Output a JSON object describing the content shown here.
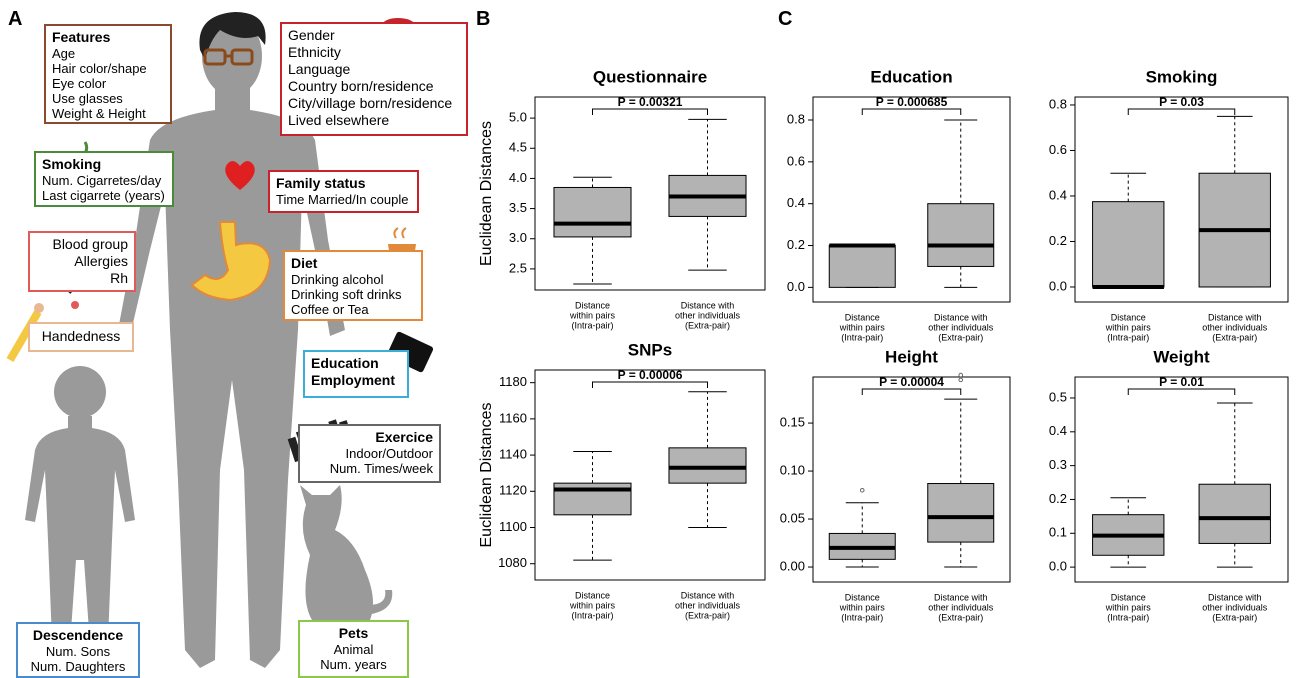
{
  "panel_labels": [
    "A",
    "B",
    "C"
  ],
  "panel_a": {
    "boxes": [
      {
        "title_lines": [
          "Features"
        ],
        "lines": [
          "Age",
          "Hair color/shape",
          "Eye color",
          "Use glasses",
          "Weight & Height"
        ],
        "color": "#8b4a2b"
      },
      {
        "lines": [
          "Gender",
          "Ethnicity",
          "Language",
          "Country born/residence",
          "City/village born/residence",
          "Lived elsewhere"
        ],
        "color": "#c8232c"
      },
      {
        "title_lines": [
          "Smoking"
        ],
        "lines": [
          "Num. Cigarretes/day",
          "Last cigarrete (years)"
        ],
        "color": "#4a8b3a"
      },
      {
        "title_lines": [
          "Family status"
        ],
        "lines": [
          "Time Married/In couple"
        ],
        "color": "#c8232c"
      },
      {
        "lines": [
          "Blood group",
          "Allergies",
          "Rh"
        ],
        "color": "#e05a5a"
      },
      {
        "title_lines": [
          "Diet"
        ],
        "lines": [
          "Drinking alcohol",
          "Drinking soft drinks",
          "Coffee or Tea"
        ],
        "color": "#e08a3a"
      },
      {
        "lines": [
          "Handedness"
        ],
        "color": "#e8b890"
      },
      {
        "title_lines": [
          "Education",
          "Employment"
        ],
        "color": "#3aaed8"
      },
      {
        "title_lines": [
          "Exercice"
        ],
        "lines": [
          "Indoor/Outdoor",
          "Num. Times/week"
        ],
        "color": "#666666"
      },
      {
        "title_lines": [
          "Descendence"
        ],
        "lines": [
          "Num. Sons",
          "Num. Daughters"
        ],
        "color": "#4a8bd0"
      },
      {
        "title_lines": [
          "Pets"
        ],
        "lines": [
          "Animal",
          "Num. years"
        ],
        "color": "#8bc84a"
      }
    ]
  },
  "chart_data": [
    {
      "type": "box",
      "title": "Questionnaire",
      "ylabel": "Euclidean Distances",
      "annotation": "P = 0.00321",
      "category_lines": [
        [
          "Distance",
          "within pairs",
          "(Intra-pair)"
        ],
        [
          "Distance with",
          "other individuals",
          "(Extra-pair)"
        ]
      ],
      "boxes": [
        {
          "min": 2.25,
          "q1": 3.03,
          "median": 3.25,
          "q3": 3.85,
          "max": 4.02
        },
        {
          "min": 2.48,
          "q1": 3.37,
          "median": 3.7,
          "q3": 4.05,
          "max": 4.98
        }
      ],
      "color": "#b3b3b3",
      "ylim": [
        2.15,
        5.35
      ],
      "yticks": [
        {
          "value": 2.5,
          "label": "2.5"
        },
        {
          "value": 3,
          "label": "3.0"
        },
        {
          "value": 3.5,
          "label": "3.5"
        },
        {
          "value": 4,
          "label": "4.0"
        },
        {
          "value": 4.5,
          "label": "4.5"
        },
        {
          "value": 5,
          "label": "5.0"
        }
      ]
    },
    {
      "type": "box",
      "title": "SNPs",
      "ylabel": "Euclidean Distances",
      "annotation": "P = 0.00006",
      "category_lines": [
        [
          "Distance",
          "within pairs",
          "(Intra-pair)"
        ],
        [
          "Distance with",
          "other individuals",
          "(Extra-pair)"
        ]
      ],
      "boxes": [
        {
          "min": 1082,
          "q1": 1107,
          "median": 1121,
          "q3": 1124.5,
          "max": 1142
        },
        {
          "min": 1100,
          "q1": 1124.5,
          "median": 1133,
          "q3": 1144,
          "max": 1175
        }
      ],
      "color": "#b3b3b3",
      "ylim": [
        1071,
        1187
      ],
      "yticks": [
        1080,
        1100,
        1120,
        1140,
        1160,
        1180
      ]
    },
    {
      "type": "box",
      "title": "Education",
      "annotation": "P = 0.000685",
      "category_lines": [
        [
          "Distance",
          "within pairs",
          "(Intra-pair)"
        ],
        [
          "Distance with",
          "other individuals",
          "(Extra-pair)"
        ]
      ],
      "boxes": [
        {
          "min": 0,
          "q1": 0,
          "median": 0.2,
          "q3": 0.2,
          "max": 0.2
        },
        {
          "min": 0,
          "q1": 0.1,
          "median": 0.2,
          "q3": 0.4,
          "max": 0.8
        }
      ],
      "color": "#b3b3b3",
      "ylim": [
        -0.07,
        0.91
      ],
      "yticks": [
        {
          "value": 0,
          "label": "0.0"
        },
        0.2,
        0.4,
        0.6,
        0.8
      ]
    },
    {
      "type": "box",
      "title": "Smoking",
      "annotation": "P = 0.03",
      "category_lines": [
        [
          "Distance",
          "within pairs",
          "(Intra-pair)"
        ],
        [
          "Distance with",
          "other individuals",
          "(Extra-pair)"
        ]
      ],
      "boxes": [
        {
          "min": 0,
          "q1": 0,
          "median": 0,
          "q3": 0.375,
          "max": 0.5
        },
        {
          "min": 0,
          "q1": 0,
          "median": 0.25,
          "q3": 0.5,
          "max": 0.75
        }
      ],
      "color": "#b3b3b3",
      "ylim": [
        -0.066,
        0.835
      ],
      "yticks": [
        {
          "value": 0,
          "label": "0.0"
        },
        0.2,
        0.4,
        0.6,
        0.8
      ]
    },
    {
      "type": "box",
      "title": "Height",
      "annotation": "P = 0.00004",
      "category_lines": [
        [
          "Distance",
          "within pairs",
          "(Intra-pair)"
        ],
        [
          "Distance with",
          "other individuals",
          "(Extra-pair)"
        ]
      ],
      "boxes": [
        {
          "min": 0,
          "q1": 0.008,
          "median": 0.02,
          "q3": 0.035,
          "max": 0.067,
          "outliers": [
            0.08
          ]
        },
        {
          "min": 0,
          "q1": 0.026,
          "median": 0.052,
          "q3": 0.087,
          "max": 0.175,
          "outliers": [
            0.195,
            0.2
          ]
        }
      ],
      "color": "#b3b3b3",
      "ylim": [
        -0.0156,
        0.198
      ],
      "yticks": [
        {
          "value": 0,
          "label": "0.00"
        },
        0.05,
        {
          "value": 0.1,
          "label": "0.10"
        },
        0.15
      ]
    },
    {
      "type": "box",
      "title": "Weight",
      "annotation": "P = 0.01",
      "category_lines": [
        [
          "Distance",
          "within pairs",
          "(Intra-pair)"
        ],
        [
          "Distance with",
          "other individuals",
          "(Extra-pair)"
        ]
      ],
      "boxes": [
        {
          "min": 0,
          "q1": 0.035,
          "median": 0.093,
          "q3": 0.155,
          "max": 0.205
        },
        {
          "min": 0,
          "q1": 0.07,
          "median": 0.145,
          "q3": 0.245,
          "max": 0.485
        }
      ],
      "color": "#b3b3b3",
      "ylim": [
        -0.044,
        0.562
      ],
      "yticks": [
        {
          "value": 0,
          "label": "0.0"
        },
        0.1,
        0.2,
        0.3,
        0.4,
        0.5
      ]
    }
  ]
}
